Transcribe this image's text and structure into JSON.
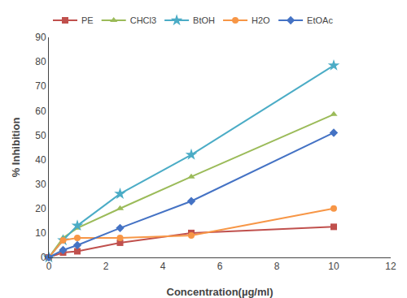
{
  "chart_data": {
    "type": "line",
    "x": [
      0,
      0.5,
      1,
      2.5,
      5,
      10
    ],
    "series": [
      {
        "name": "PE",
        "color": "#C0504D",
        "marker": "square",
        "values": [
          0,
          2,
          2.5,
          6,
          10,
          12.5
        ]
      },
      {
        "name": "CHCl3",
        "color": "#9BBB59",
        "marker": "triangle-up",
        "values": [
          0,
          8,
          12,
          20,
          33,
          58.5
        ]
      },
      {
        "name": "BtOH",
        "color": "#4BACC6",
        "marker": "star",
        "values": [
          0,
          7,
          13,
          26,
          42,
          78.5
        ]
      },
      {
        "name": "H2O",
        "color": "#F79646",
        "marker": "circle",
        "values": [
          0,
          7,
          8,
          8,
          9,
          20
        ]
      },
      {
        "name": "EtOAc",
        "color": "#4472C4",
        "marker": "diamond",
        "values": [
          0,
          3,
          5,
          12,
          23,
          51
        ]
      }
    ],
    "xlabel": "Concentration(µg/ml)",
    "ylabel": "% Inhibition",
    "xlim": [
      0,
      12
    ],
    "ylim": [
      0,
      90
    ],
    "xticks": [
      0,
      2,
      4,
      6,
      8,
      10,
      12
    ],
    "yticks": [
      0,
      10,
      20,
      30,
      40,
      50,
      60,
      70,
      80,
      90
    ],
    "grid": false,
    "legend": "upper left"
  }
}
